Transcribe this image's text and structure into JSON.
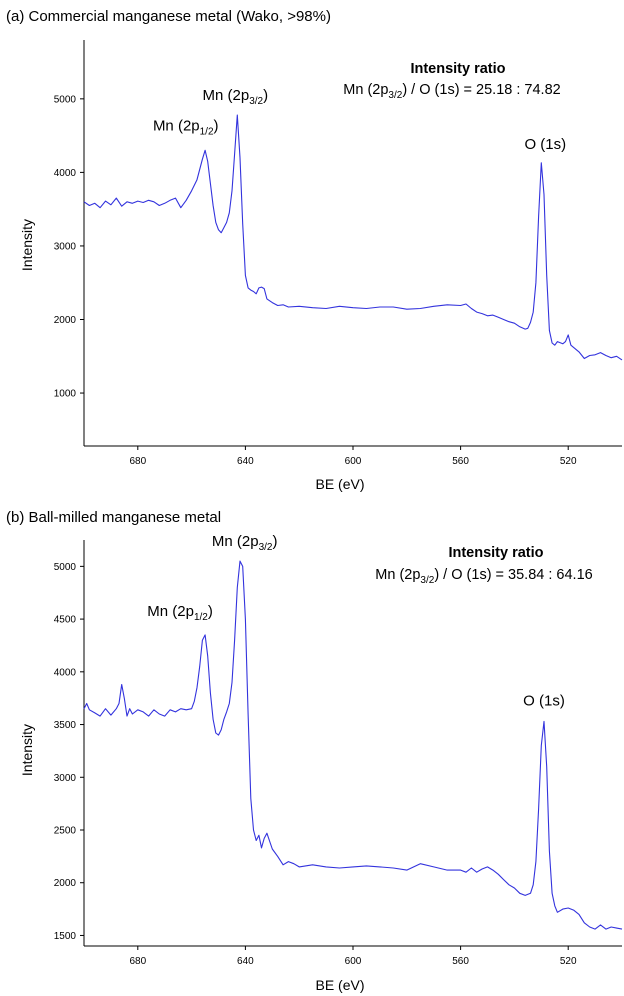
{
  "chart_data": [
    {
      "type": "line",
      "panel_title": "(a) Commercial manganese metal (Wako, >98%)",
      "xlabel": "BE (eV)",
      "ylabel": "Intensity",
      "xlim": [
        700,
        500
      ],
      "x_reversed": true,
      "ylim": [
        280,
        5800
      ],
      "xticks": [
        "680",
        "640",
        "600",
        "560",
        "520"
      ],
      "yticks": [
        "1000",
        "2000",
        "3000",
        "4000",
        "5000"
      ],
      "grid": false,
      "color": "#3333dd",
      "peak_labels": [
        {
          "label_base": "Mn (2p",
          "label_sub": "1/2",
          "label_end": ")",
          "x": 654,
          "y": 4300
        },
        {
          "label_base": "Mn (2p",
          "label_sub": "3/2",
          "label_end": ")",
          "x": 643,
          "y": 4780
        },
        {
          "label_base": "O (1s)",
          "label_sub": "",
          "label_end": "",
          "x": 530,
          "y": 4130
        }
      ],
      "ratio_title": "Intensity ratio",
      "ratio_lhs": "Mn (2p",
      "ratio_sub": "3/2",
      "ratio_rhs": ") / O (1s) = 25.18 : 74.82",
      "series": [
        {
          "x": [
            700,
            698,
            696,
            694,
            692,
            690,
            688,
            686,
            684,
            682,
            680,
            678,
            676,
            674,
            672,
            670,
            668,
            666,
            664,
            662,
            660,
            658,
            656,
            655,
            654,
            653,
            652,
            651,
            650,
            649,
            648,
            647,
            646,
            645,
            644,
            643,
            642,
            641,
            640,
            639,
            638,
            637,
            636,
            635,
            634,
            633,
            632,
            630,
            628,
            626,
            624,
            620,
            615,
            610,
            605,
            600,
            595,
            590,
            585,
            580,
            575,
            570,
            565,
            560,
            558,
            556,
            554,
            552,
            550,
            548,
            546,
            544,
            542,
            540,
            538,
            536,
            535,
            534,
            533,
            532,
            531,
            530,
            529,
            528,
            527,
            526,
            525,
            524,
            522,
            521,
            520,
            519,
            518,
            516,
            514,
            512,
            510,
            508,
            506,
            504,
            502,
            500
          ],
          "y": [
            3600,
            3550,
            3580,
            3520,
            3610,
            3560,
            3650,
            3540,
            3600,
            3580,
            3610,
            3590,
            3620,
            3600,
            3550,
            3580,
            3620,
            3650,
            3520,
            3620,
            3750,
            3900,
            4180,
            4300,
            4150,
            3850,
            3550,
            3320,
            3220,
            3180,
            3250,
            3320,
            3450,
            3750,
            4250,
            4780,
            4200,
            3300,
            2600,
            2430,
            2400,
            2380,
            2350,
            2430,
            2440,
            2420,
            2280,
            2230,
            2190,
            2200,
            2170,
            2180,
            2160,
            2150,
            2180,
            2160,
            2150,
            2170,
            2170,
            2140,
            2150,
            2180,
            2200,
            2190,
            2210,
            2150,
            2100,
            2080,
            2050,
            2060,
            2030,
            2000,
            1970,
            1950,
            1900,
            1870,
            1880,
            1960,
            2100,
            2500,
            3400,
            4130,
            3700,
            2600,
            1850,
            1680,
            1650,
            1700,
            1670,
            1700,
            1790,
            1650,
            1620,
            1560,
            1470,
            1510,
            1520,
            1550,
            1510,
            1480,
            1500,
            1450
          ]
        }
      ]
    },
    {
      "type": "line",
      "panel_title": "(b) Ball-milled manganese metal",
      "xlabel": "BE (eV)",
      "ylabel": "Intensity",
      "xlim": [
        700,
        500
      ],
      "x_reversed": true,
      "ylim": [
        1400,
        5250
      ],
      "xticks": [
        "680",
        "640",
        "600",
        "560",
        "520"
      ],
      "yticks": [
        "1500",
        "2000",
        "2500",
        "3000",
        "3500",
        "4000",
        "4500",
        "5000"
      ],
      "grid": false,
      "color": "#3333dd",
      "peak_labels": [
        {
          "label_base": "Mn (2p",
          "label_sub": "1/2",
          "label_end": ")",
          "x": 655,
          "y": 4350
        },
        {
          "label_base": "Mn (2p",
          "label_sub": "3/2",
          "label_end": ")",
          "x": 641,
          "y": 5050
        },
        {
          "label_base": "O (1s)",
          "label_sub": "",
          "label_end": "",
          "x": 529,
          "y": 3530
        }
      ],
      "ratio_title": "Intensity ratio",
      "ratio_lhs": "Mn (2p",
      "ratio_sub": "3/2",
      "ratio_rhs": ") / O (1s) = 35.84 : 64.16",
      "series": [
        {
          "x": [
            700,
            699,
            698,
            696,
            694,
            692,
            690,
            688,
            687,
            686,
            685,
            684,
            683,
            682,
            680,
            678,
            676,
            674,
            672,
            670,
            668,
            666,
            664,
            662,
            660,
            659,
            658,
            657,
            656,
            655,
            654,
            653,
            652,
            651,
            650,
            649,
            648,
            647,
            646,
            645,
            644,
            643,
            642,
            641,
            640,
            639,
            638,
            637,
            636,
            635,
            634,
            633,
            632,
            630,
            628,
            626,
            624,
            622,
            620,
            615,
            610,
            605,
            600,
            595,
            590,
            585,
            580,
            575,
            570,
            565,
            560,
            558,
            556,
            554,
            552,
            550,
            548,
            546,
            544,
            542,
            540,
            538,
            536,
            534,
            533,
            532,
            531,
            530,
            529,
            528,
            527,
            526,
            525,
            524,
            522,
            520,
            518,
            516,
            514,
            512,
            510,
            508,
            506,
            504,
            502,
            500
          ],
          "y": [
            3650,
            3700,
            3640,
            3610,
            3580,
            3650,
            3590,
            3650,
            3700,
            3880,
            3750,
            3580,
            3650,
            3600,
            3640,
            3620,
            3580,
            3640,
            3600,
            3580,
            3640,
            3620,
            3650,
            3640,
            3650,
            3720,
            3850,
            4050,
            4300,
            4350,
            4150,
            3800,
            3550,
            3420,
            3400,
            3450,
            3550,
            3620,
            3700,
            3900,
            4300,
            4800,
            5050,
            5000,
            4500,
            3600,
            2800,
            2500,
            2400,
            2450,
            2330,
            2420,
            2470,
            2320,
            2250,
            2170,
            2200,
            2180,
            2150,
            2170,
            2150,
            2140,
            2150,
            2160,
            2150,
            2140,
            2120,
            2180,
            2150,
            2120,
            2120,
            2100,
            2140,
            2100,
            2130,
            2150,
            2120,
            2080,
            2030,
            1980,
            1950,
            1900,
            1880,
            1900,
            1980,
            2200,
            2700,
            3300,
            3530,
            3100,
            2300,
            1900,
            1780,
            1720,
            1750,
            1760,
            1740,
            1700,
            1620,
            1580,
            1560,
            1600,
            1560,
            1580,
            1570,
            1560
          ]
        }
      ]
    }
  ]
}
